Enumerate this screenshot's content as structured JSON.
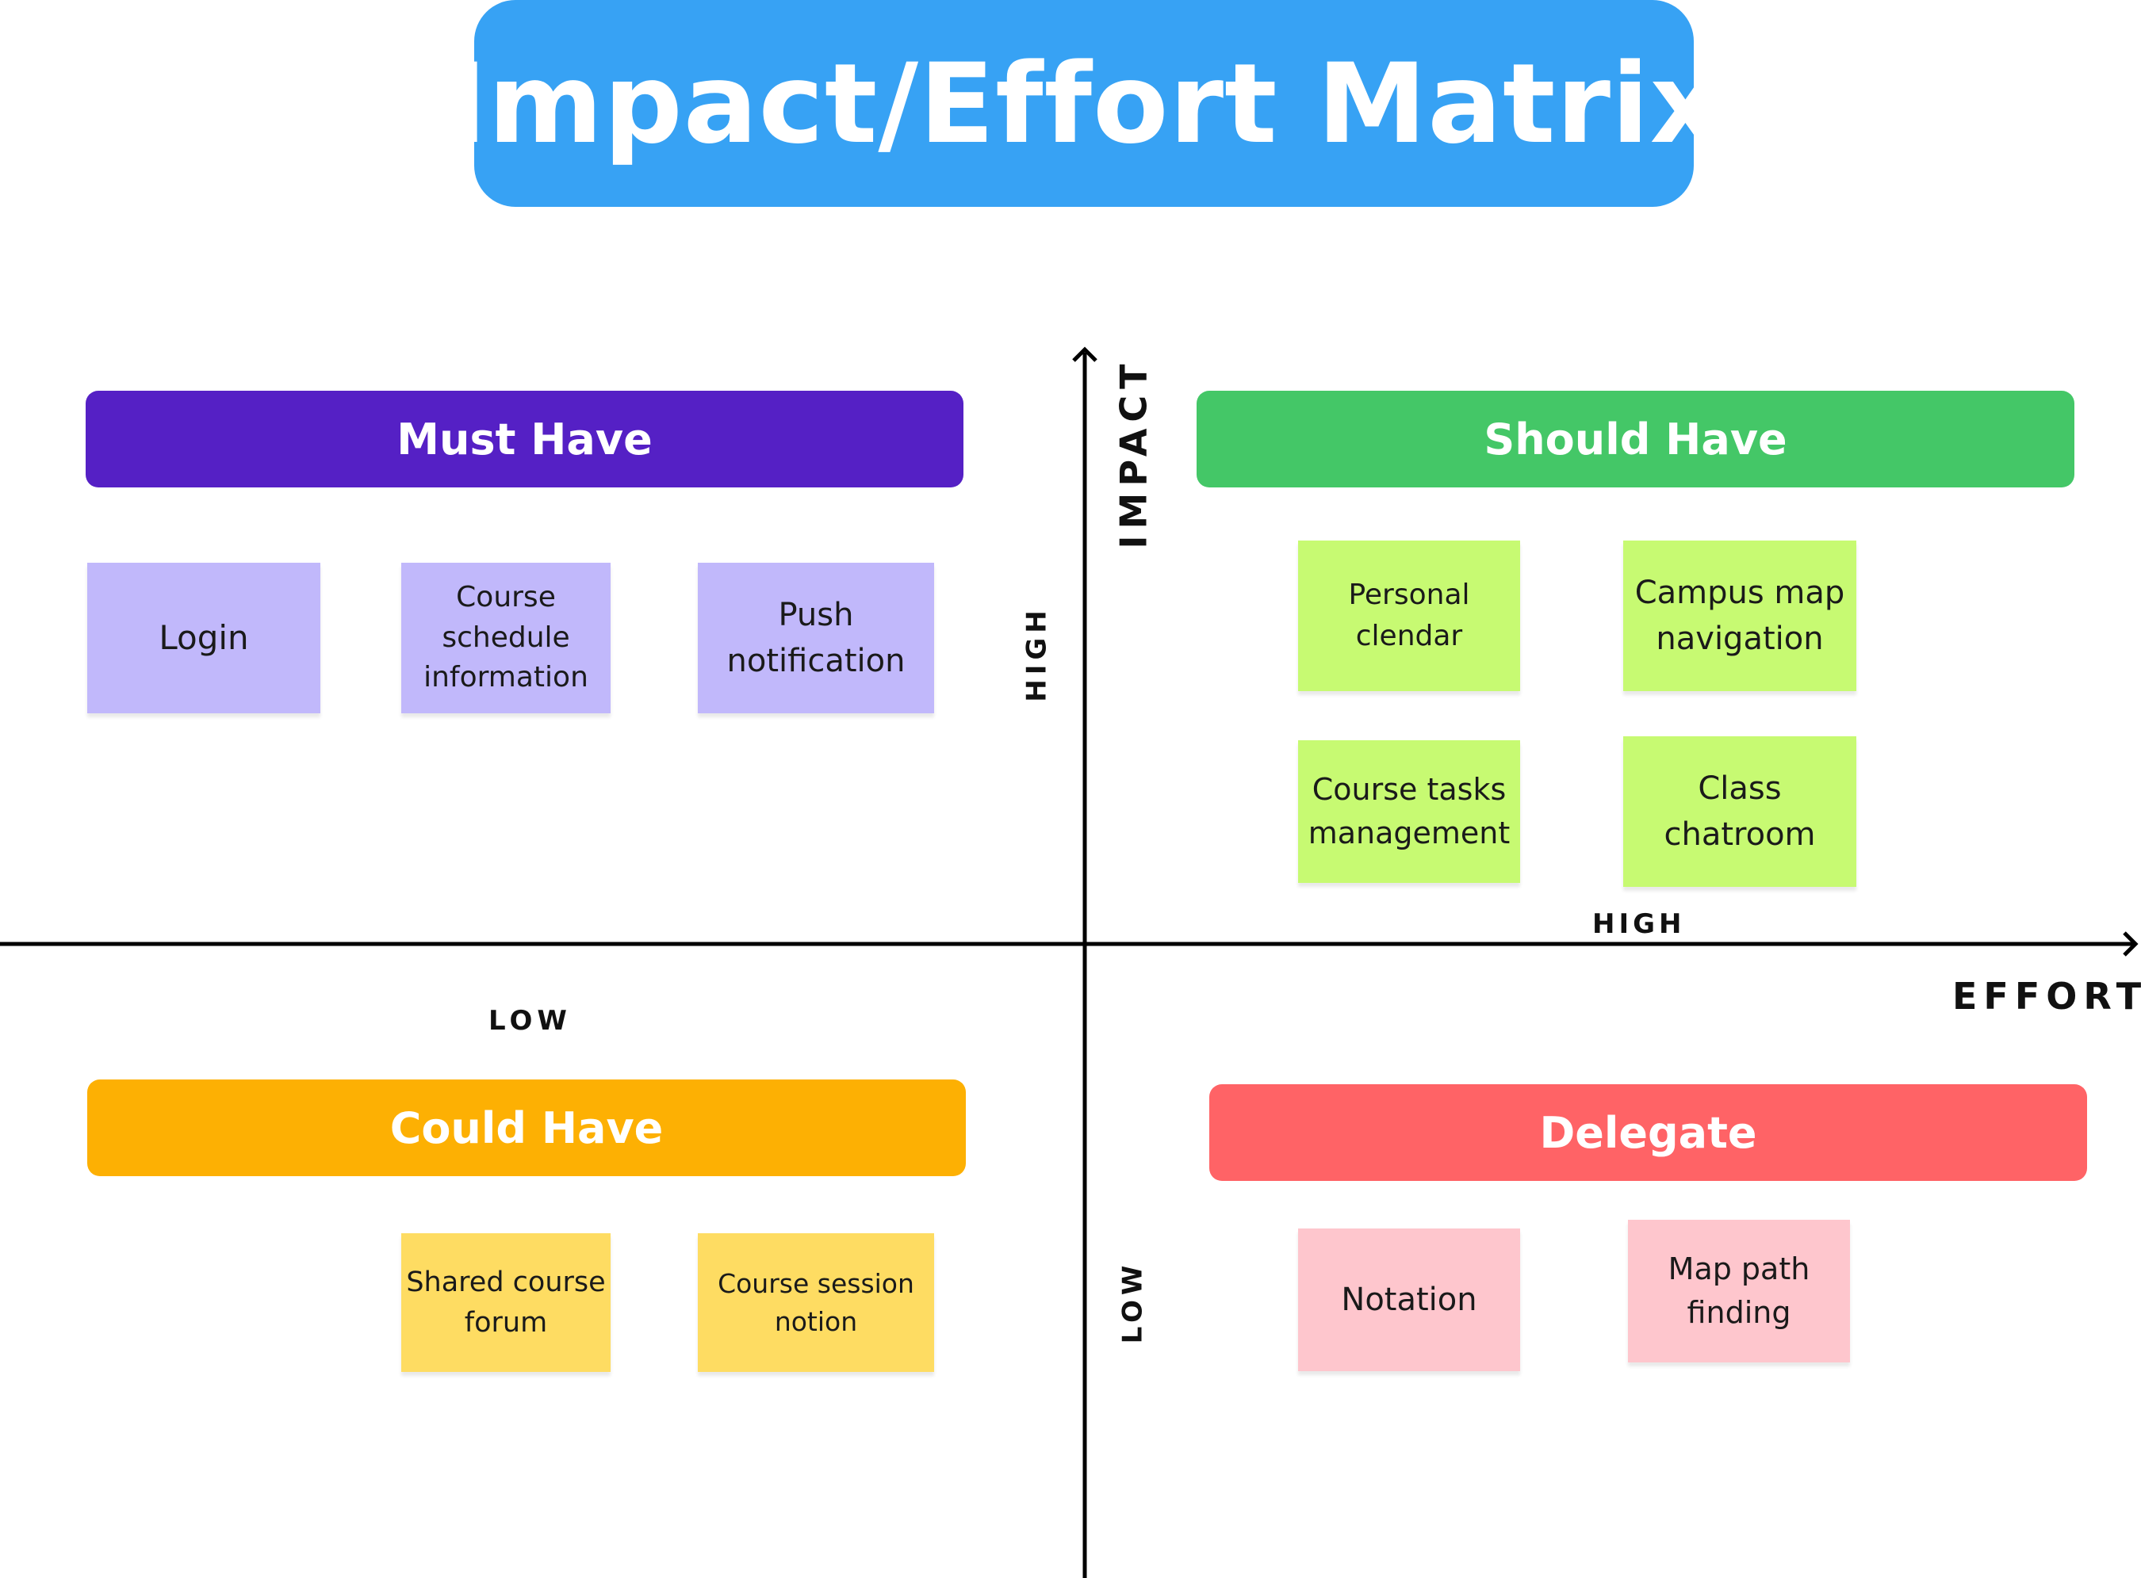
{
  "title": "Impact/Effort Matrix",
  "axes": {
    "vertical_title": "IMPACT",
    "horizontal_title": "EFFORT",
    "impact_high": "HIGH",
    "impact_low": "LOW",
    "effort_high": "HIGH",
    "effort_low": "LOW"
  },
  "quadrants": {
    "must_have": {
      "label": "Must Have",
      "color": "#5520c5",
      "note_color": "#c1b8fb",
      "notes": [
        "Login",
        "Course schedule information",
        "Push notification"
      ]
    },
    "should_have": {
      "label": "Should Have",
      "color": "#44c767",
      "note_color": "#c7fa72",
      "notes": [
        "Personal clendar",
        "Campus map navigation",
        "Course tasks management",
        "Class chatroom"
      ]
    },
    "could_have": {
      "label": "Could Have",
      "color": "#fdb003",
      "note_color": "#fedc62",
      "notes": [
        "Shared course forum",
        "Course session notion"
      ]
    },
    "delegate": {
      "label": "Delegate",
      "color": "#ff6366",
      "note_color": "#fec6cd",
      "notes": [
        "Notation",
        "Map path finding"
      ]
    }
  }
}
